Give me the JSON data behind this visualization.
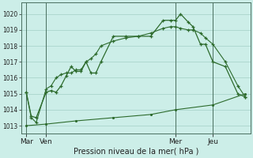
{
  "xlabel": "Pression niveau de la mer( hPa )",
  "bg_color": "#cceee8",
  "grid_color": "#aad4cc",
  "line_color": "#2d6b2d",
  "ylim": [
    1012.5,
    1020.7
  ],
  "yticks": [
    1013,
    1014,
    1015,
    1016,
    1017,
    1018,
    1019,
    1020
  ],
  "day_labels": [
    "Mar",
    "Ven",
    "Mer",
    "Jeu"
  ],
  "day_positions": [
    0,
    8,
    60,
    75
  ],
  "vline_positions": [
    0,
    8,
    60,
    75
  ],
  "xlim": [
    -2,
    90
  ],
  "series1_x": [
    0,
    2,
    4,
    8,
    10,
    12,
    14,
    16,
    18,
    20,
    22,
    24,
    26,
    28,
    30,
    35,
    40,
    45,
    50,
    55,
    58,
    60,
    62,
    65,
    67,
    70,
    72,
    75,
    80,
    85,
    88
  ],
  "series1_y": [
    1015.1,
    1013.6,
    1013.5,
    1015.1,
    1015.2,
    1015.1,
    1015.5,
    1016.1,
    1016.7,
    1016.4,
    1016.4,
    1017.0,
    1016.3,
    1016.3,
    1017.0,
    1018.6,
    1018.6,
    1018.6,
    1018.6,
    1019.6,
    1019.6,
    1019.6,
    1020.0,
    1019.5,
    1019.2,
    1018.1,
    1018.1,
    1017.0,
    1016.7,
    1015.0,
    1014.8
  ],
  "series2_x": [
    0,
    2,
    4,
    8,
    10,
    12,
    14,
    16,
    18,
    20,
    22,
    24,
    26,
    28,
    30,
    35,
    40,
    45,
    50,
    55,
    58,
    60,
    62,
    65,
    67,
    70,
    72,
    75,
    80,
    85,
    88
  ],
  "series2_y": [
    1015.1,
    1013.5,
    1013.2,
    1015.3,
    1015.5,
    1016.0,
    1016.2,
    1016.3,
    1016.3,
    1016.5,
    1016.5,
    1017.0,
    1017.2,
    1017.5,
    1018.0,
    1018.3,
    1018.5,
    1018.6,
    1018.8,
    1019.1,
    1019.2,
    1019.2,
    1019.1,
    1019.0,
    1019.0,
    1018.8,
    1018.5,
    1018.1,
    1017.0,
    1015.5,
    1014.8
  ],
  "series3_x": [
    0,
    8,
    20,
    35,
    50,
    60,
    75,
    88
  ],
  "series3_y": [
    1013.0,
    1013.1,
    1013.3,
    1013.5,
    1013.7,
    1014.0,
    1014.3,
    1015.0
  ]
}
